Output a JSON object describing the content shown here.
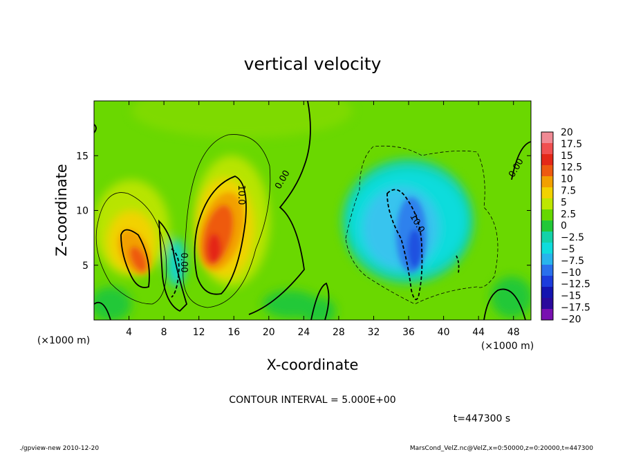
{
  "chart_data": {
    "type": "heatmap",
    "title": "vertical velocity",
    "xlabel": "X-coordinate",
    "ylabel": "Z-coordinate",
    "x_unit": "(×1000 m)",
    "y_unit": "(×1000 m)",
    "xlim": [
      0,
      50
    ],
    "ylim": [
      0,
      20
    ],
    "x_ticks": [
      4,
      8,
      12,
      16,
      20,
      24,
      28,
      32,
      36,
      40,
      44,
      48
    ],
    "y_ticks": [
      5,
      10,
      15
    ],
    "contour_interval_text": "CONTOUR INTERVAL = 5.000E+00",
    "time_text": "t=447300 s",
    "colorbar": {
      "labels": [
        "20",
        "17.5",
        "15",
        "12.5",
        "10",
        "7.5",
        "5",
        "2.5",
        "0",
        "−2.5",
        "−5",
        "−7.5",
        "−10",
        "−12.5",
        "−15",
        "−17.5",
        "−20"
      ],
      "levels": [
        20,
        17.5,
        15,
        12.5,
        10,
        7.5,
        5,
        2.5,
        0,
        -2.5,
        -5,
        -7.5,
        -10,
        -12.5,
        -15,
        -17.5,
        -20
      ],
      "colors": [
        "#f08a94",
        "#f05050",
        "#e42818",
        "#ee5a10",
        "#f2a000",
        "#f2d200",
        "#bee600",
        "#66d800",
        "#22c838",
        "#14d2a8",
        "#10dcdc",
        "#28b4ec",
        "#2a70ec",
        "#1c3cdc",
        "#1414b0",
        "#2a0a9c",
        "#7810b0"
      ]
    },
    "features": [
      {
        "center": [
          5,
          7
        ],
        "peak": 12.5
      },
      {
        "center": [
          14,
          7.5
        ],
        "peak": 14
      },
      {
        "center": [
          36,
          8
        ],
        "peak": -11
      },
      {
        "center": [
          10,
          5
        ],
        "peak": -4
      }
    ],
    "contour_labels": [
      "0.00",
      "10.0",
      "0.00",
      "10.0",
      "0.00"
    ]
  },
  "footer": {
    "left": "./gpview-new  2010-12-20",
    "right": "MarsCond_VelZ.nc@VelZ,x=0:50000,z=0:20000,t=447300"
  }
}
